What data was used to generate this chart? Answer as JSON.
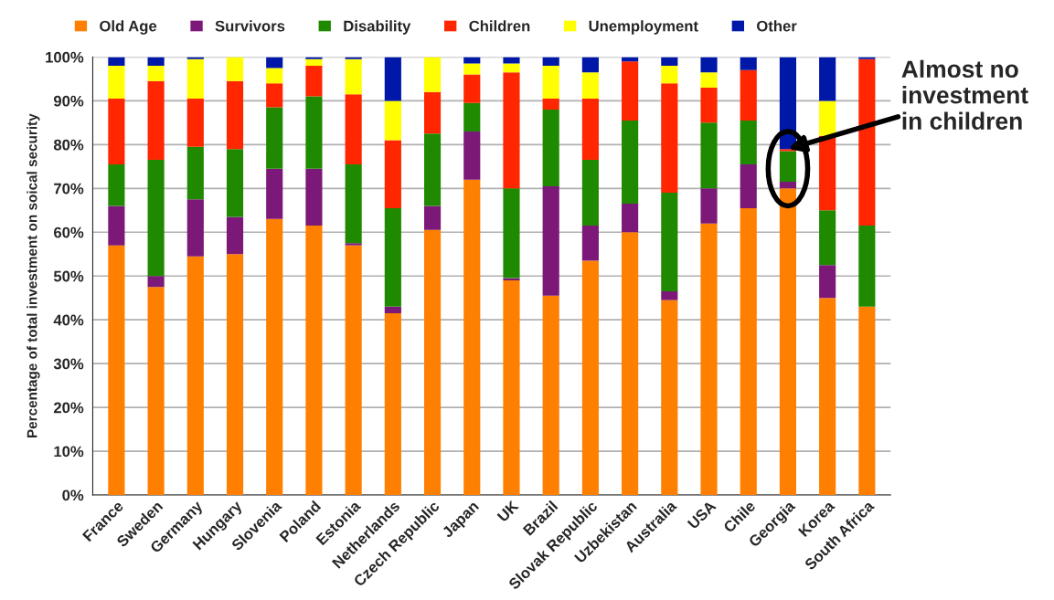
{
  "chart_data": {
    "type": "bar",
    "stacked": true,
    "ylabel": "Percentage of total investment on soical security",
    "categories": [
      "France",
      "Sweden",
      "Germany",
      "Hungary",
      "Slovenia",
      "Poland",
      "Estonia",
      "Netherlands",
      "Czech Republic",
      "Japan",
      "UK",
      "Brazil",
      "Slovak Republic",
      "Uzbekistan",
      "Australia",
      "USA",
      "Chile",
      "Georgia",
      "Korea",
      "South Africa"
    ],
    "series": [
      {
        "name": "Old Age",
        "color": "#ff7f00",
        "values": [
          57,
          47.5,
          54.5,
          55,
          63,
          61.5,
          57,
          41.5,
          60.5,
          72,
          49,
          45.5,
          53.5,
          60,
          44.5,
          62,
          65.5,
          70,
          45,
          43
        ]
      },
      {
        "name": "Survivors",
        "color": "#7b1878",
        "values": [
          9,
          2.5,
          13,
          8.5,
          11.5,
          13,
          0.5,
          1.5,
          5.5,
          11,
          0.5,
          25,
          8,
          6.5,
          2,
          8,
          10,
          1.5,
          7.5,
          0
        ]
      },
      {
        "name": "Disability",
        "color": "#1f8a00",
        "values": [
          9.5,
          26.5,
          12,
          15.5,
          14,
          16.5,
          18,
          22.5,
          16.5,
          6.5,
          20.5,
          17.5,
          15,
          19,
          22.5,
          15,
          10,
          7,
          12.5,
          18.5
        ]
      },
      {
        "name": "Children",
        "color": "#ff2600",
        "values": [
          15,
          18,
          11,
          15.5,
          5.5,
          7,
          16,
          15.5,
          9.5,
          6.5,
          26.5,
          2.5,
          14,
          13.5,
          25,
          8,
          11.5,
          0.5,
          17,
          38
        ]
      },
      {
        "name": "Unemployment",
        "color": "#ffff00",
        "values": [
          7.5,
          3.5,
          9,
          5.5,
          3.5,
          1.5,
          8,
          9,
          8,
          2.5,
          2,
          7.5,
          6,
          0,
          4,
          3.5,
          0,
          0,
          8,
          0
        ]
      },
      {
        "name": "Other",
        "color": "#0018a8",
        "values": [
          2,
          2,
          0.5,
          0,
          2.5,
          0.5,
          0.5,
          10,
          0,
          1.5,
          1.5,
          2,
          3.5,
          1,
          2,
          3.5,
          3,
          21,
          10,
          0.5
        ]
      }
    ],
    "ylim": [
      0,
      100
    ],
    "yticks": [
      {
        "value": 0,
        "label": "0%"
      },
      {
        "value": 10,
        "label": "10%"
      },
      {
        "value": 20,
        "label": "20%"
      },
      {
        "value": 30,
        "label": "30%"
      },
      {
        "value": 40,
        "label": "40%"
      },
      {
        "value": 50,
        "label": "50%"
      },
      {
        "value": 60,
        "label": "60%"
      },
      {
        "value": 70,
        "label": "70%"
      },
      {
        "value": 80,
        "label": "80%"
      },
      {
        "value": 90,
        "label": "90%"
      },
      {
        "value": 100,
        "label": "100%"
      }
    ],
    "grid": "y",
    "legend": "top",
    "annotations": [
      {
        "text": "Almost no\ninvestment\nin children",
        "x": "Georgia",
        "y": 79
      }
    ]
  }
}
